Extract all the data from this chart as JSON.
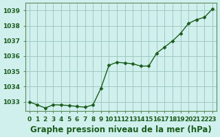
{
  "x": [
    0,
    1,
    2,
    3,
    4,
    5,
    6,
    7,
    8,
    9,
    10,
    11,
    12,
    13,
    14,
    15,
    16,
    17,
    18,
    19,
    20,
    21,
    22,
    23
  ],
  "y": [
    1033.0,
    1032.8,
    1032.6,
    1032.8,
    1032.8,
    1032.75,
    1032.7,
    1032.65,
    1032.8,
    1033.9,
    1035.4,
    1035.6,
    1035.55,
    1035.5,
    1035.35,
    1035.35,
    1036.2,
    1036.6,
    1037.0,
    1037.5,
    1038.15,
    1038.4,
    1038.55,
    1039.1
  ],
  "line_color": "#1a5c1a",
  "marker_color": "#1a5c1a",
  "bg_color": "#d0f0ee",
  "plot_bg_color": "#d0f0ee",
  "grid_color": "#a0c8c0",
  "title": "Graphe pression niveau de la mer (hPa)",
  "ylim_min": 1032.4,
  "ylim_max": 1039.5,
  "yticks": [
    1033,
    1034,
    1035,
    1036,
    1037,
    1038,
    1039
  ],
  "xticks": [
    0,
    1,
    2,
    3,
    4,
    5,
    6,
    7,
    8,
    9,
    10,
    11,
    12,
    13,
    14,
    15,
    16,
    17,
    18,
    19,
    20,
    21,
    22,
    23
  ],
  "title_fontsize": 8.5,
  "tick_fontsize": 6.5
}
